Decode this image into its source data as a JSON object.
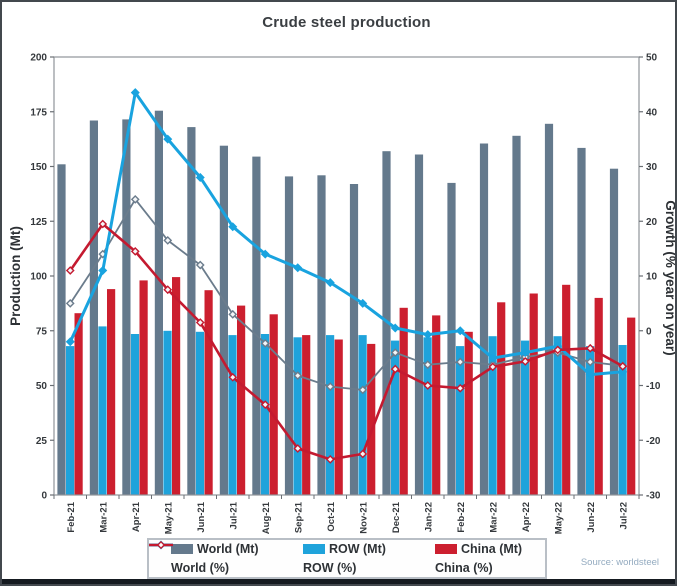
{
  "source_note": "Source: worldsteel",
  "chart_data": {
    "type": "combo-bar-line",
    "title": "Crude steel production",
    "grid": false,
    "legend_position": "bottom",
    "categories": [
      "Feb-21",
      "Mar-21",
      "Apr-21",
      "May-21",
      "Jun-21",
      "Jul-21",
      "Aug-21",
      "Sep-21",
      "Oct-21",
      "Nov-21",
      "Dec-21",
      "Jan-22",
      "Feb-22",
      "Mar-22",
      "Apr-22",
      "May-22",
      "Jun-22",
      "Jul-22"
    ],
    "left_axis": {
      "label": "Production (Mt)",
      "min": 0,
      "max": 200,
      "ticks": [
        0,
        25,
        50,
        75,
        100,
        125,
        150,
        175,
        200
      ]
    },
    "right_axis": {
      "label": "Growth (% year on year)",
      "min": -30,
      "max": 50,
      "ticks": [
        -30,
        -20,
        -10,
        0,
        10,
        20,
        30,
        40,
        50
      ]
    },
    "bar_series": [
      {
        "name": "World (Mt)",
        "color": "#64798c",
        "values": [
          151,
          171,
          171.5,
          175.5,
          168,
          159.5,
          154.5,
          145.5,
          146,
          142,
          157,
          155.5,
          142.5,
          160.5,
          164,
          169.5,
          158.5,
          149
        ]
      },
      {
        "name": "ROW (Mt)",
        "color": "#1fa3db",
        "values": [
          68,
          77,
          73.5,
          75,
          74.5,
          73,
          73.5,
          72,
          73,
          73,
          70.5,
          72,
          68,
          72.5,
          70.5,
          72.5,
          68,
          68.5
        ]
      },
      {
        "name": "China (Mt)",
        "color": "#cc1f2f",
        "values": [
          83,
          94,
          98,
          99.5,
          93.5,
          86.5,
          82.5,
          73,
          71,
          69,
          85.5,
          82,
          74.5,
          88,
          92,
          96,
          90,
          81
        ]
      }
    ],
    "line_series": [
      {
        "name": "World (%)",
        "color": "#6b7c8c",
        "marker": "diamond-open",
        "width": 1.8,
        "values": [
          5,
          14,
          24,
          16.5,
          12,
          3,
          -2.3,
          -8.2,
          -10.2,
          -10.8,
          -4,
          -6.2,
          -5.7,
          -6.2,
          -4.8,
          -4,
          -5.7,
          -6.4
        ]
      },
      {
        "name": "ROW (%)",
        "color": "#19a3df",
        "marker": "diamond",
        "width": 3,
        "values": [
          -2,
          11,
          43.5,
          35,
          28,
          19,
          14,
          11.5,
          8.8,
          5,
          0.5,
          -0.7,
          0,
          -5,
          -4,
          -2.8,
          -8,
          -7.5
        ]
      },
      {
        "name": "China (%)",
        "color": "#c41a30",
        "marker": "diamond-open",
        "width": 2.6,
        "values": [
          11,
          19.5,
          14.5,
          7.5,
          1.5,
          -8.5,
          -13.5,
          -21.5,
          -23.5,
          -22.5,
          -7,
          -10,
          -10.5,
          -6.6,
          -5.6,
          -3.5,
          -3.2,
          -6.5
        ]
      }
    ]
  }
}
